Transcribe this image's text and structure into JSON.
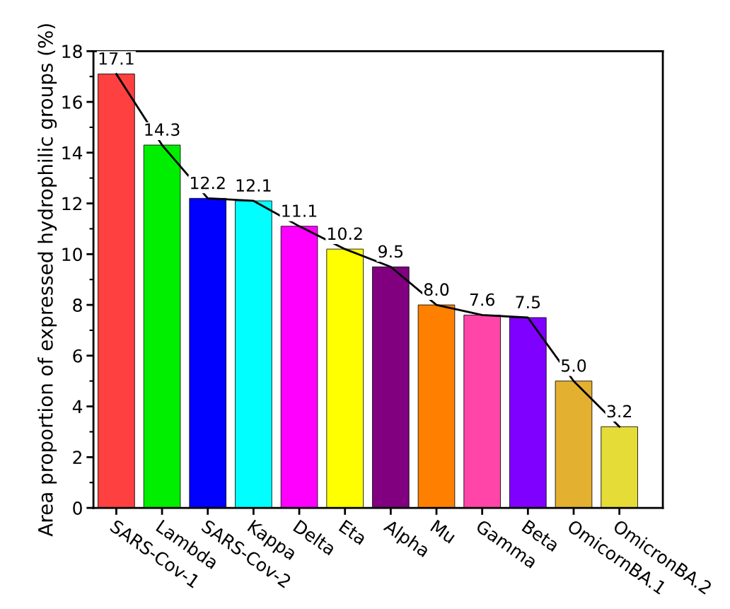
{
  "chart_data": {
    "type": "bar",
    "ylabel": "Area proportion of expressed hydrophilic groups (%)",
    "categories": [
      "SARS-Cov-1",
      "Lambda",
      "SARS-Cov-2",
      "Kappa",
      "Delta",
      "Eta",
      "Alpha",
      "Mu",
      "Gamma",
      "Beta",
      "OmicornBA.1",
      "OmicronBA.2"
    ],
    "series": [
      {
        "values": [
          17.1,
          14.3,
          12.2,
          12.1,
          11.1,
          10.2,
          9.5,
          8.0,
          7.6,
          7.5,
          5.0,
          3.2
        ],
        "colors": [
          "#ff4040",
          "#00ee00",
          "#0000ff",
          "#00ffff",
          "#ff00ff",
          "#ffff00",
          "#800080",
          "#ff8000",
          "#ff45a8",
          "#8000ff",
          "#e3b030",
          "#e6dc38"
        ]
      },
      {
        "type": "line",
        "color": "#000000",
        "values": [
          17.1,
          14.3,
          12.2,
          12.1,
          11.1,
          10.2,
          9.5,
          8.0,
          7.6,
          7.5,
          5.0,
          3.2
        ]
      }
    ],
    "value_labels": [
      "17.1",
      "14.3",
      "12.2",
      "12.1",
      "11.1",
      "10.2",
      "9.5",
      "8.0",
      "7.6",
      "7.5",
      "5.0",
      "3.2"
    ],
    "ylim": [
      0,
      18
    ],
    "yticks": [
      0,
      2,
      4,
      6,
      8,
      10,
      12,
      14,
      16,
      18
    ],
    "grid": false,
    "legend": false,
    "marker": "none",
    "line_style": "solid"
  }
}
